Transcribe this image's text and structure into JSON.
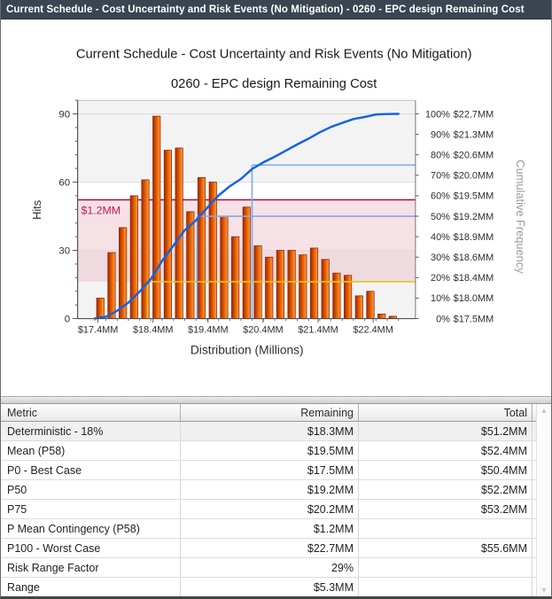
{
  "window": {
    "title": "Current Schedule - Cost Uncertainty and Risk Events (No Mitigation) - 0260 - EPC design Remaining Cost"
  },
  "chart_data": {
    "type": "bar",
    "subtype": "histogram_with_cumulative_curve",
    "title_line1": "Current Schedule - Cost Uncertainty and Risk Events (No Mitigation)",
    "title_line2": "0260 - EPC design Remaining Cost",
    "xlabel": "Distribution (Millions)",
    "ylabel_left": "Hits",
    "ylabel_right": "Cumulative Frequency",
    "x_axis": {
      "min": 17.03,
      "max": 23.17,
      "tick_values": [
        17.4,
        18.4,
        19.4,
        20.4,
        21.4,
        22.4
      ],
      "tick_labels": [
        "$17.4MM",
        "$18.4MM",
        "$19.4MM",
        "$20.4MM",
        "$21.4MM",
        "$22.4MM"
      ]
    },
    "y_left_axis": {
      "min": 0,
      "max": 96,
      "tick_values": [
        0,
        30,
        60,
        90
      ],
      "minor_step": 6,
      "grid": true
    },
    "y_right_axis": {
      "ticks": [
        {
          "pct": 0,
          "label": "$17.5MM"
        },
        {
          "pct": 10,
          "label": "$18.0MM"
        },
        {
          "pct": 20,
          "label": "$18.4MM"
        },
        {
          "pct": 30,
          "label": "$18.6MM"
        },
        {
          "pct": 40,
          "label": "$18.9MM"
        },
        {
          "pct": 50,
          "label": "$19.2MM"
        },
        {
          "pct": 60,
          "label": "$19.5MM"
        },
        {
          "pct": 70,
          "label": "$20.0MM"
        },
        {
          "pct": 80,
          "label": "$20.6MM"
        },
        {
          "pct": 90,
          "label": "$21.3MM"
        },
        {
          "pct": 100,
          "label": "$22.7MM"
        }
      ]
    },
    "bins": {
      "start": 17.34,
      "width": 0.2045
    },
    "hits": [
      9,
      29,
      40,
      54,
      61,
      89,
      74,
      75,
      47,
      62,
      60,
      45,
      36,
      49,
      32,
      27,
      30,
      30,
      28,
      31,
      26,
      20,
      19,
      10,
      12,
      2,
      1
    ],
    "markers": {
      "deterministic": {
        "value": 18.3,
        "pct": 18,
        "color": "#eec319"
      },
      "p50": {
        "value": 19.2,
        "pct": 50,
        "color": "#7fa8ec"
      },
      "p75": {
        "value": 20.2,
        "pct": 75,
        "color": "#7fa8ec"
      },
      "mean_line": {
        "pct": 58,
        "color": "#aa0a3c"
      },
      "contingency_band": {
        "pct_from": 18,
        "pct_to": 58,
        "label": "$1.2MM",
        "fill": "#e9b7c4",
        "label_color": "#c11a55"
      }
    },
    "colors": {
      "curve": "#1463df",
      "bar_dark": "#9e2b00",
      "bar_mid": "#e06300",
      "bar_light": "#ff9c45",
      "bar_stroke": "#8a2800",
      "band_gray": "#f3f3f4",
      "gridline": "#dcdcdc"
    }
  },
  "table": {
    "headers": [
      "Metric",
      "Remaining",
      "Total"
    ],
    "rows": [
      {
        "metric": "Deterministic - 18%",
        "remaining": "$18.3MM",
        "total": "$51.2MM"
      },
      {
        "metric": "Mean (P58)",
        "remaining": "$19.5MM",
        "total": "$52.4MM"
      },
      {
        "metric": "P0 - Best Case",
        "remaining": "$17.5MM",
        "total": "$50.4MM"
      },
      {
        "metric": "P50",
        "remaining": "$19.2MM",
        "total": "$52.2MM"
      },
      {
        "metric": "P75",
        "remaining": "$20.2MM",
        "total": "$53.2MM"
      },
      {
        "metric": "P Mean Contingency (P58)",
        "remaining": "$1.2MM",
        "total": ""
      },
      {
        "metric": "P100 - Worst Case",
        "remaining": "$22.7MM",
        "total": "$55.6MM"
      },
      {
        "metric": "Risk Range Factor",
        "remaining": "29%",
        "total": ""
      },
      {
        "metric": "Range",
        "remaining": "$5.3MM",
        "total": ""
      }
    ],
    "scrollbar": {
      "up_icon": "▲",
      "down_icon": "▼"
    }
  }
}
